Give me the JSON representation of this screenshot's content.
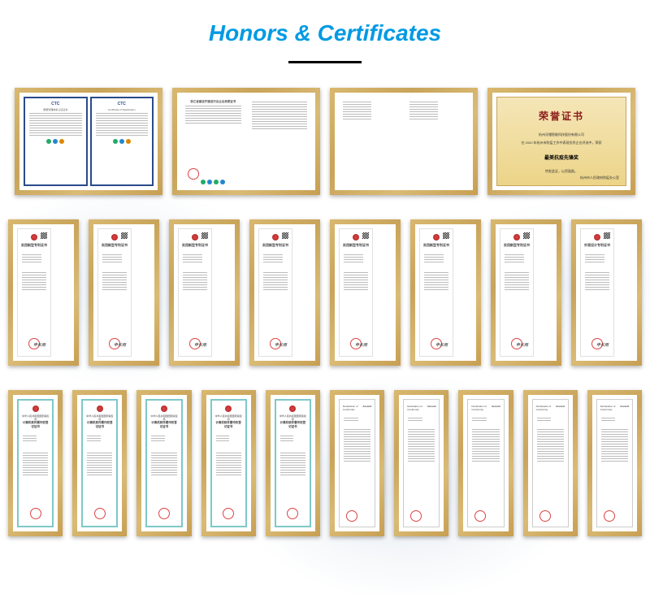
{
  "title": "Honors & Certificates",
  "colors": {
    "title": "#009ae3",
    "frame_gold": "#c9a45a",
    "honor_bg": "#ecd488",
    "honor_title": "#8b1a1a"
  },
  "row1": [
    {
      "type": "ctc-dual",
      "left_header": "CTC",
      "right_header": "CTC",
      "left_sub": "质量管理体系认证证书",
      "right_sub": "Certificate of Registration",
      "border": "#2a4a8a",
      "logos": [
        "#2a6",
        "#28c",
        "#d80"
      ]
    },
    {
      "type": "registration",
      "header": "浙江省建设厅建设行业企业资质证书",
      "stamp": true,
      "logos": [
        "#2a6",
        "#28c",
        "#2a6",
        "#28c"
      ]
    },
    {
      "type": "plain-dual",
      "lines": 8
    },
    {
      "type": "honor",
      "title": "荣誉证书",
      "line1": "杭州沃镭智能科技股份有限公司",
      "line2": "在 2020 年杭州市防疫工作中表现优秀企业评选中，荣获",
      "main": "最美抗疫先锋奖",
      "line3": "特发此证，以资鼓励。",
      "footer": "杭州市人民政府防疫办公室"
    }
  ],
  "row2": {
    "count": 8,
    "title_normal": "实用新型专利证书",
    "title_last": "外观设计专利证书",
    "signature": "申长雨",
    "emblem": "red",
    "stamp_pos": "center"
  },
  "row3_copyright": {
    "count": 5,
    "header": "中华人民共和国国家版权局",
    "title": "计算机软件著作权登记证书",
    "border": "#7ec8c8",
    "stamp": true
  },
  "row3_conformity": {
    "count": 5,
    "title": "Declaration of Conformity",
    "brand": "Ascend",
    "stamp": true
  }
}
